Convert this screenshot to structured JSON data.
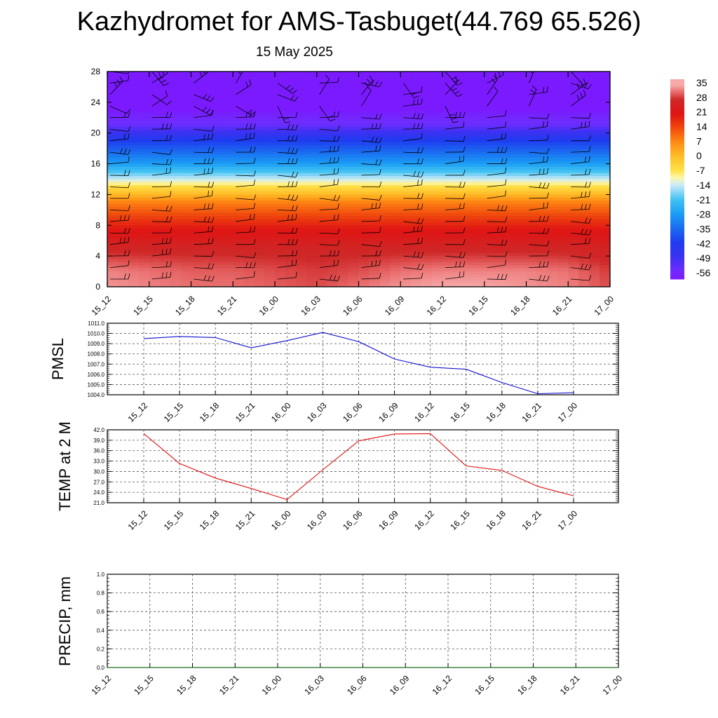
{
  "header": {
    "title": "Kazhydromet for AMS-Tasbuget(44.769 65.526)",
    "date": "15 May 2025"
  },
  "colors": {
    "pmsl_line": "#1010d0",
    "temp_line": "#e01010",
    "precip_line": "#1a7a1a",
    "wind_barb": "#000000"
  },
  "chart_data": [
    {
      "type": "heatmap",
      "name": "vertical-temperature-section",
      "x_categories": [
        "15_12",
        "15_15",
        "15_18",
        "15_21",
        "16_00",
        "16_03",
        "16_06",
        "16_09",
        "16_12",
        "16_15",
        "16_18",
        "16_21",
        "17_00"
      ],
      "y_ticks": [
        0,
        4,
        8,
        12,
        16,
        20,
        24,
        28
      ],
      "ylim": [
        0,
        28
      ],
      "colorbar": {
        "labels": [
          "35",
          "28",
          "21",
          "14",
          "7",
          "0",
          "-7",
          "-14",
          "-21",
          "-28",
          "-35",
          "-42",
          "-49",
          "-56"
        ],
        "range": [
          -60,
          38
        ]
      },
      "temperature_levels": [
        {
          "y": 0,
          "values": [
            34,
            33,
            32,
            32,
            31,
            30,
            32,
            34,
            35,
            35,
            34,
            33,
            30
          ]
        },
        {
          "y": 2,
          "values": [
            33,
            32,
            31,
            31,
            30,
            29,
            30,
            32,
            33,
            33,
            33,
            32,
            29
          ]
        },
        {
          "y": 5,
          "values": [
            27,
            27,
            27,
            27,
            27,
            27,
            27,
            27,
            27,
            27,
            27,
            27,
            26
          ]
        },
        {
          "y": 8,
          "values": [
            19,
            19,
            19,
            19,
            19,
            19,
            19,
            19,
            19,
            19,
            19,
            19,
            19
          ]
        },
        {
          "y": 11,
          "values": [
            8,
            8,
            8,
            8,
            8,
            8,
            8,
            8,
            8,
            8,
            8,
            8,
            8
          ]
        },
        {
          "y": 13,
          "values": [
            -6,
            -6,
            -6,
            -6,
            -6,
            -6,
            -6,
            -6,
            -6,
            -6,
            -6,
            -6,
            -6
          ]
        },
        {
          "y": 14,
          "values": [
            -14,
            -14,
            -14,
            -14,
            -14,
            -14,
            -14,
            -14,
            -14,
            -14,
            -14,
            -14,
            -14
          ]
        },
        {
          "y": 16,
          "values": [
            -28,
            -28,
            -28,
            -28,
            -28,
            -28,
            -28,
            -28,
            -28,
            -28,
            -28,
            -28,
            -28
          ]
        },
        {
          "y": 19,
          "values": [
            -42,
            -42,
            -42,
            -42,
            -42,
            -42,
            -42,
            -42,
            -42,
            -42,
            -42,
            -42,
            -42
          ]
        },
        {
          "y": 21,
          "values": [
            -55,
            -55,
            -55,
            -55,
            -55,
            -55,
            -55,
            -55,
            -55,
            -55,
            -55,
            -55,
            -55
          ]
        },
        {
          "y": 23,
          "values": [
            -60,
            -60,
            -60,
            -60,
            -60,
            -60,
            -60,
            -60,
            -60,
            -60,
            -60,
            -60,
            -60
          ]
        },
        {
          "y": 28,
          "values": [
            -60,
            -60,
            -60,
            -60,
            -60,
            -60,
            -60,
            -60,
            -60,
            -60,
            -60,
            -60,
            -60
          ]
        }
      ]
    },
    {
      "type": "line",
      "name": "pmsl",
      "ylabel": "PMSL",
      "x_categories": [
        "15_12",
        "15_15",
        "15_18",
        "15_21",
        "16_00",
        "16_03",
        "16_06",
        "16_09",
        "16_12",
        "16_15",
        "16_18",
        "16_21",
        "17_00"
      ],
      "y_ticks": [
        "1011.0",
        "1010.0",
        "1009.0",
        "1008.0",
        "1007.0",
        "1006.0",
        "1005.0",
        "1004.0"
      ],
      "ylim": [
        1004,
        1011
      ],
      "values": [
        1009.5,
        1009.7,
        1009.6,
        1008.6,
        1009.3,
        1010.1,
        1009.2,
        1007.5,
        1006.7,
        1006.5,
        1005.2,
        1004.1,
        1004.2
      ]
    },
    {
      "type": "line",
      "name": "temp-2m",
      "ylabel": "TEMP at 2 M",
      "x_categories": [
        "15_12",
        "15_15",
        "15_18",
        "15_21",
        "16_00",
        "16_03",
        "16_06",
        "16_09",
        "16_12",
        "16_15",
        "16_18",
        "16_21",
        "17_00"
      ],
      "y_ticks": [
        "42.0",
        "39.0",
        "36.0",
        "33.0",
        "30.0",
        "27.0",
        "24.0",
        "21.0"
      ],
      "ylim": [
        21,
        42
      ],
      "values": [
        40.9,
        32.3,
        28.1,
        25.1,
        21.9,
        30.5,
        38.8,
        40.8,
        40.9,
        31.6,
        30.3,
        25.7,
        23.0
      ]
    },
    {
      "type": "line",
      "name": "precip",
      "ylabel": "PRECIP, mm",
      "x_categories": [
        "15_12",
        "15_15",
        "15_18",
        "15_21",
        "16_00",
        "16_03",
        "16_06",
        "16_09",
        "16_12",
        "16_15",
        "16_18",
        "16_21",
        "17_00"
      ],
      "y_ticks": [
        "1.0",
        "0.8",
        "0.6",
        "0.4",
        "0.2",
        "0.0"
      ],
      "ylim": [
        0,
        1
      ],
      "values": [
        0,
        0,
        0,
        0,
        0,
        0,
        0,
        0,
        0,
        0,
        0,
        0,
        0
      ]
    }
  ]
}
